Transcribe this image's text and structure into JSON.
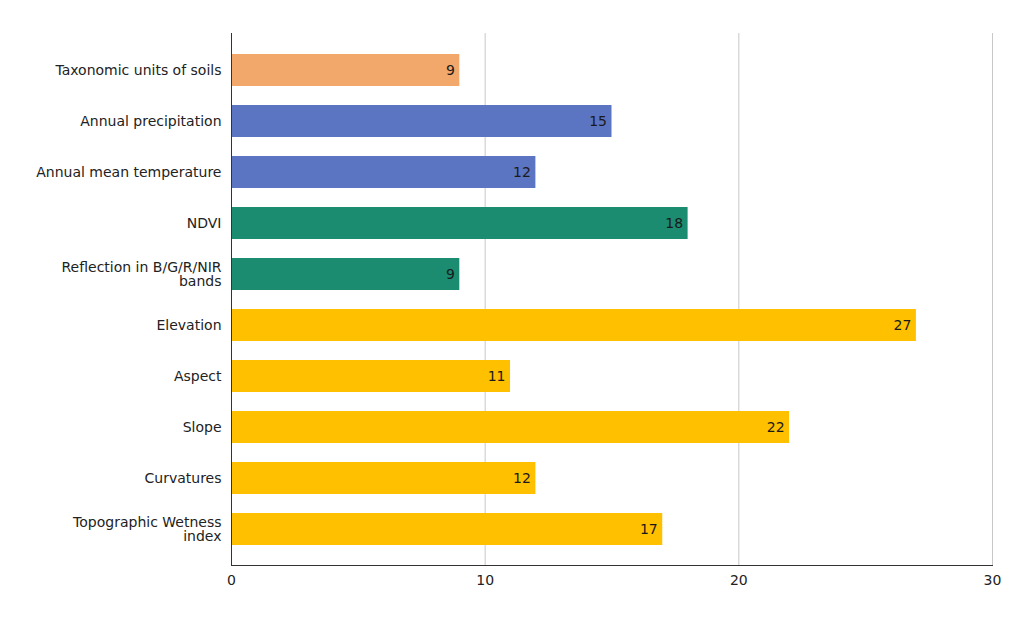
{
  "chart_data": {
    "type": "bar",
    "orientation": "horizontal",
    "categories": [
      "Taxonomic units of soils",
      "Annual precipitation",
      "Annual mean temperature",
      "NDVI",
      "Reflection in B/G/R/NIR bands",
      "Elevation",
      "Aspect",
      "Slope",
      "Curvatures",
      "Topographic Wetness index"
    ],
    "values": [
      9,
      15,
      12,
      18,
      9,
      27,
      11,
      22,
      12,
      17
    ],
    "colors": [
      "#f2a86b",
      "#5b75c2",
      "#5b75c2",
      "#1b8c6f",
      "#1b8c6f",
      "#ffc000",
      "#ffc000",
      "#ffc000",
      "#ffc000",
      "#ffc000"
    ],
    "xlim": [
      0,
      30
    ],
    "xticks": [
      0,
      10,
      20,
      30
    ],
    "grid": true,
    "data_labels": true
  }
}
